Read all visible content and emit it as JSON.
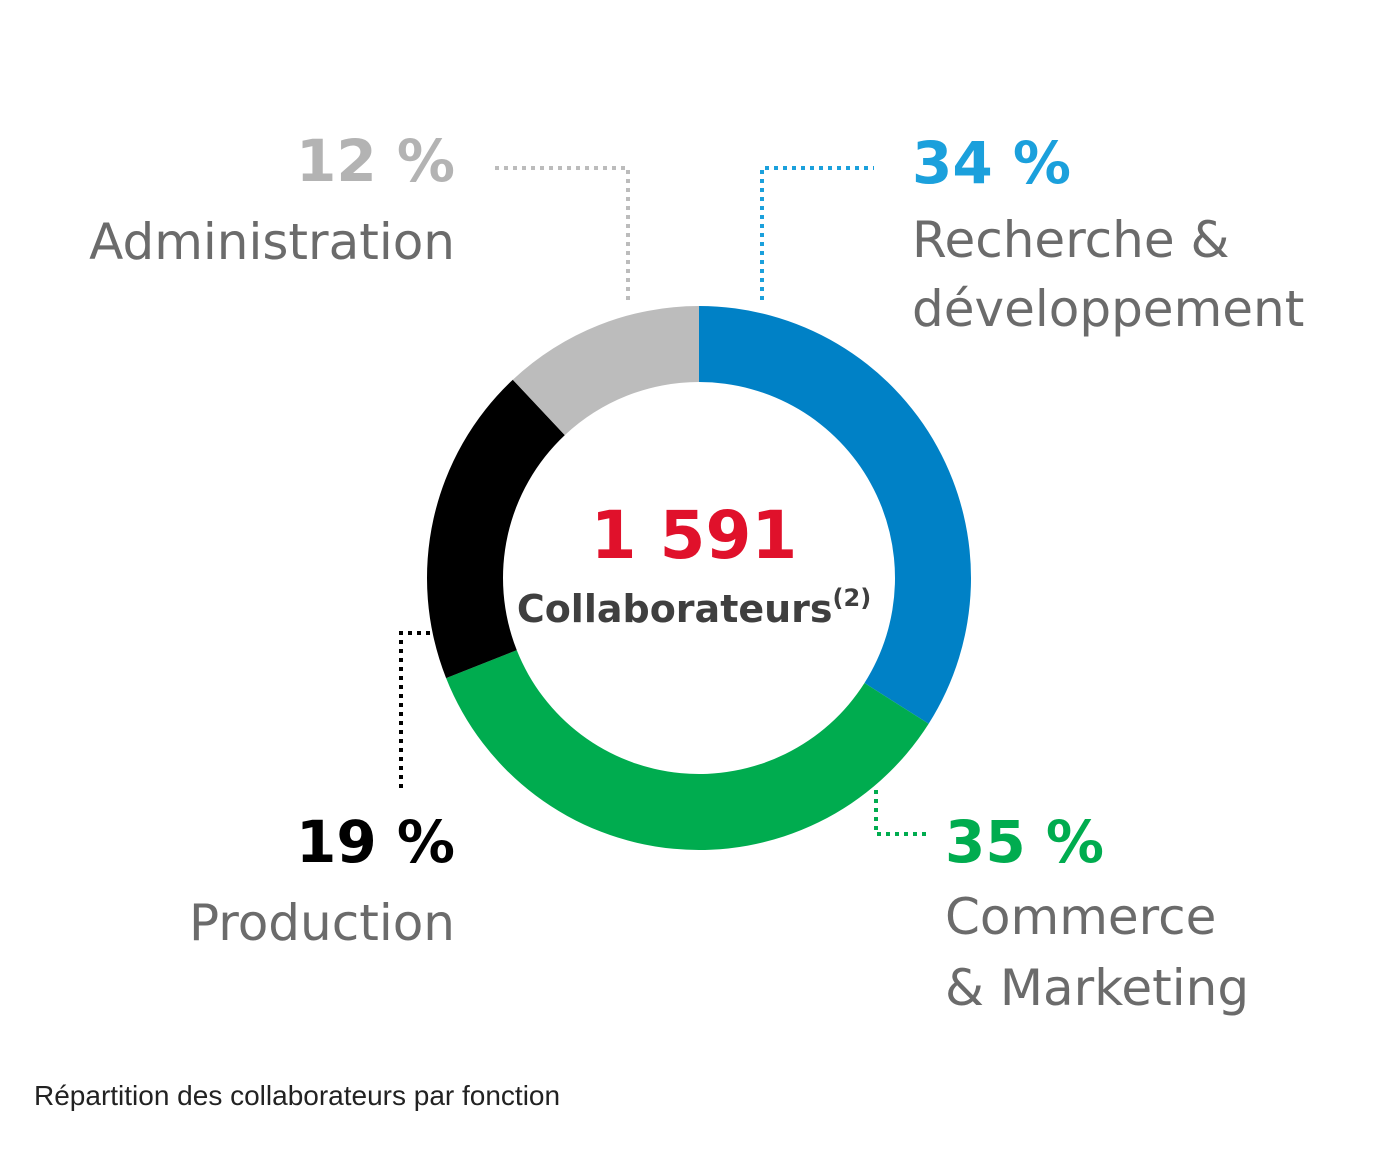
{
  "chart_data": {
    "type": "pie",
    "variant": "donut",
    "total": {
      "value": "1 591",
      "label": "Collaborateurs",
      "footnote": "(2)"
    },
    "slices": [
      {
        "key": "rd",
        "percent": 34,
        "percent_label": "34 %",
        "label_lines": [
          "Recherche &",
          "développement"
        ],
        "color": "#0081c6",
        "label_color": "#1ba0dc"
      },
      {
        "key": "commerce",
        "percent": 35,
        "percent_label": "35 %",
        "label_lines": [
          "Commerce",
          "& Marketing"
        ],
        "color": "#00ac4f",
        "label_color": "#00ac4f"
      },
      {
        "key": "production",
        "percent": 19,
        "percent_label": "19 %",
        "label_lines": [
          "Production"
        ],
        "color": "#000000",
        "label_color": "#000000"
      },
      {
        "key": "admin",
        "percent": 12,
        "percent_label": "12 %",
        "label_lines": [
          "Administration"
        ],
        "color": "#bcbcbc",
        "label_color": "#b3b3b3"
      }
    ],
    "total_color": "#e0112b",
    "caption": "Répartition des collaborateurs par fonction"
  }
}
